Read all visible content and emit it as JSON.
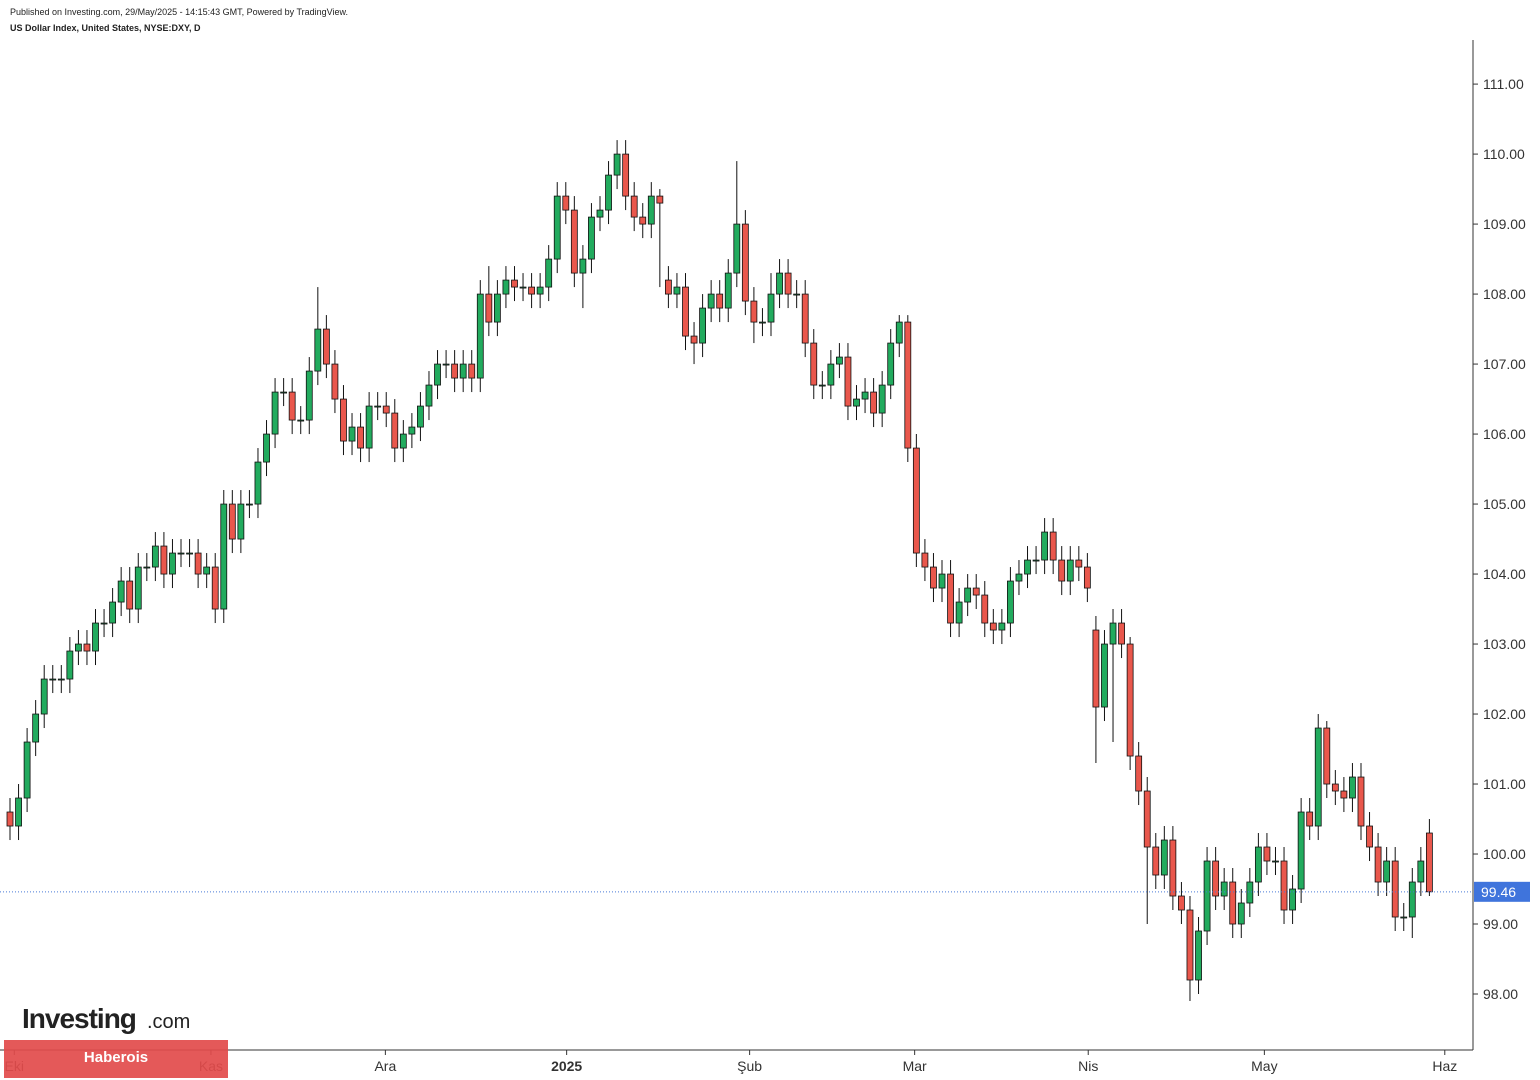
{
  "chart_data": {
    "type": "candlestick",
    "source_note": "Published on Investing.com, 29/May/2025 - 14:15:43 GMT, Powered by TradingView.",
    "title": "US Dollar Index, United States, NYSE:DXY, D",
    "up_color": "#22ab5e",
    "down_color": "#e9574c",
    "ylim": [
      97.2,
      111.63
    ],
    "yticks": [
      {
        "value": 98,
        "label": "98.00"
      },
      {
        "value": 99,
        "label": "99.00"
      },
      {
        "value": 100,
        "label": "100.00"
      },
      {
        "value": 101,
        "label": "101.00"
      },
      {
        "value": 102,
        "label": "102.00"
      },
      {
        "value": 103,
        "label": "103.00"
      },
      {
        "value": 104,
        "label": "104.00"
      },
      {
        "value": 105,
        "label": "105.00"
      },
      {
        "value": 106,
        "label": "106.00"
      },
      {
        "value": 107,
        "label": "107.00"
      },
      {
        "value": 108,
        "label": "108.00"
      },
      {
        "value": 109,
        "label": "109.00"
      },
      {
        "value": 110,
        "label": "110.00"
      },
      {
        "value": 111,
        "label": "111.00"
      }
    ],
    "xlim": [
      -1.17,
      171.1
    ],
    "xticks": [
      {
        "value": 0.5,
        "label": "Eki"
      },
      {
        "value": 23.5,
        "label": "Kas"
      },
      {
        "value": 43.9,
        "label": "Ara"
      },
      {
        "value": 65.1,
        "label": "2025"
      },
      {
        "value": 86.5,
        "label": "Şub"
      },
      {
        "value": 105.8,
        "label": "Mar"
      },
      {
        "value": 126.1,
        "label": "Nis"
      },
      {
        "value": 146.7,
        "label": "May"
      },
      {
        "value": 167.8,
        "label": "Haz"
      }
    ],
    "open": [
      100.6,
      100.4,
      100.8,
      101.6,
      102.0,
      102.5,
      102.5,
      102.5,
      102.9,
      103.0,
      102.9,
      103.3,
      103.3,
      103.6,
      103.9,
      103.5,
      104.1,
      104.1,
      104.4,
      104.0,
      104.3,
      104.3,
      104.3,
      104.0,
      104.1,
      103.5,
      105.0,
      104.5,
      105.0,
      105.0,
      105.6,
      106.0,
      106.6,
      106.6,
      106.2,
      106.2,
      106.9,
      107.5,
      107.0,
      106.5,
      105.9,
      106.1,
      105.8,
      106.4,
      106.4,
      106.3,
      105.8,
      106.0,
      106.1,
      106.4,
      106.7,
      107.0,
      107.0,
      106.8,
      107.0,
      106.8,
      108.0,
      107.6,
      108.0,
      108.2,
      108.1,
      108.1,
      108.0,
      108.1,
      108.5,
      109.4,
      109.2,
      108.3,
      108.5,
      109.1,
      109.2,
      109.7,
      110.0,
      109.4,
      109.1,
      109.0,
      109.4,
      108.2,
      108.0,
      108.1,
      107.4,
      107.3,
      107.8,
      108.0,
      107.8,
      108.3,
      109.0,
      107.9,
      107.6,
      107.6,
      108.0,
      108.3,
      108.0,
      108.0,
      107.3,
      106.7,
      106.7,
      107.0,
      107.1,
      106.4,
      106.5,
      106.6,
      106.3,
      106.7,
      107.3,
      107.6,
      105.8,
      104.3,
      104.1,
      103.8,
      104.0,
      103.3,
      103.6,
      103.8,
      103.7,
      103.3,
      103.2,
      103.3,
      103.9,
      104.0,
      104.2,
      104.2,
      104.6,
      104.2,
      103.9,
      104.2,
      104.1,
      103.2,
      102.1,
      103.0,
      103.3,
      103.0,
      101.4,
      100.9,
      100.1,
      99.7,
      100.2,
      99.4,
      99.2,
      98.2,
      98.9,
      99.9,
      99.4,
      99.6,
      99.0,
      99.3,
      99.6,
      100.1,
      99.9,
      99.9,
      99.2,
      99.5,
      100.6,
      100.4,
      101.8,
      101.0,
      100.9,
      100.8,
      101.1,
      100.4,
      100.1,
      99.6,
      99.9,
      99.1,
      99.1,
      99.6,
      100.3
    ],
    "high": [
      100.8,
      101.0,
      101.8,
      102.2,
      102.7,
      102.7,
      102.7,
      103.1,
      103.2,
      103.2,
      103.5,
      103.5,
      103.8,
      104.1,
      104.1,
      104.3,
      104.3,
      104.6,
      104.6,
      104.5,
      104.5,
      104.5,
      104.5,
      104.3,
      104.3,
      105.2,
      105.2,
      105.2,
      105.2,
      105.8,
      106.2,
      106.8,
      106.8,
      106.8,
      106.4,
      107.1,
      108.1,
      107.7,
      107.2,
      106.7,
      106.3,
      106.3,
      106.6,
      106.6,
      106.6,
      106.5,
      106.2,
      106.3,
      106.6,
      106.9,
      107.2,
      107.2,
      107.2,
      107.2,
      107.2,
      108.2,
      108.4,
      108.2,
      108.4,
      108.4,
      108.3,
      108.3,
      108.3,
      108.7,
      109.6,
      109.6,
      109.4,
      108.7,
      109.3,
      109.4,
      109.9,
      110.2,
      110.2,
      109.6,
      109.3,
      109.6,
      109.5,
      108.4,
      108.3,
      108.3,
      107.6,
      108.0,
      108.2,
      108.2,
      108.5,
      109.9,
      109.2,
      108.1,
      107.8,
      108.3,
      108.5,
      108.5,
      108.2,
      108.2,
      107.5,
      106.9,
      107.2,
      107.3,
      107.3,
      106.7,
      106.8,
      106.8,
      106.9,
      107.5,
      107.7,
      107.7,
      106.0,
      104.5,
      104.3,
      104.2,
      104.2,
      103.8,
      104.0,
      104.0,
      103.9,
      103.5,
      103.5,
      104.1,
      104.2,
      104.4,
      104.4,
      104.8,
      104.8,
      104.4,
      104.4,
      104.4,
      104.3,
      103.4,
      103.2,
      103.5,
      103.5,
      103.1,
      101.6,
      101.1,
      100.3,
      100.4,
      100.4,
      99.6,
      99.4,
      99.1,
      100.1,
      100.1,
      99.8,
      99.8,
      99.5,
      99.8,
      100.3,
      100.3,
      100.1,
      100.1,
      99.7,
      100.8,
      100.8,
      102.0,
      101.9,
      101.2,
      101.1,
      101.3,
      101.3,
      100.6,
      100.3,
      100.1,
      100.1,
      99.3,
      99.8,
      100.1,
      100.5
    ],
    "low": [
      100.2,
      100.2,
      100.6,
      101.4,
      101.8,
      102.3,
      102.3,
      102.3,
      102.7,
      102.7,
      102.7,
      103.1,
      103.1,
      103.4,
      103.3,
      103.3,
      103.9,
      103.9,
      103.8,
      103.8,
      104.1,
      104.1,
      103.8,
      103.8,
      103.3,
      103.3,
      104.3,
      104.3,
      104.8,
      104.8,
      105.4,
      105.8,
      106.4,
      106.0,
      106.0,
      106.0,
      106.7,
      106.8,
      106.3,
      105.7,
      105.7,
      105.6,
      105.6,
      106.2,
      106.1,
      105.6,
      105.6,
      105.8,
      105.9,
      106.2,
      106.5,
      106.8,
      106.6,
      106.6,
      106.6,
      106.6,
      107.4,
      107.4,
      107.8,
      107.9,
      107.9,
      107.8,
      107.8,
      107.9,
      108.3,
      109.0,
      108.1,
      107.8,
      108.3,
      108.9,
      109.0,
      109.5,
      109.2,
      108.9,
      108.8,
      108.8,
      108.1,
      107.8,
      107.8,
      107.2,
      107.0,
      107.1,
      107.6,
      107.6,
      107.6,
      108.1,
      107.7,
      107.3,
      107.4,
      107.4,
      107.8,
      107.8,
      107.8,
      107.1,
      106.5,
      106.5,
      106.5,
      106.8,
      106.2,
      106.2,
      106.3,
      106.1,
      106.1,
      106.5,
      107.1,
      105.6,
      104.1,
      103.9,
      103.6,
      103.6,
      103.1,
      103.1,
      103.4,
      103.5,
      103.1,
      103.0,
      103.0,
      103.1,
      103.7,
      103.8,
      104.0,
      104.0,
      104.0,
      103.7,
      103.7,
      103.9,
      103.6,
      101.3,
      101.9,
      101.6,
      102.8,
      101.2,
      100.7,
      99.0,
      99.5,
      99.5,
      99.2,
      99.0,
      97.9,
      98.0,
      98.7,
      99.2,
      99.2,
      98.8,
      98.8,
      99.1,
      99.4,
      99.7,
      99.7,
      99.0,
      99.0,
      99.3,
      100.2,
      100.2,
      100.8,
      100.7,
      100.6,
      100.6,
      100.2,
      99.9,
      99.4,
      99.4,
      98.9,
      98.9,
      98.8,
      99.4,
      99.4
    ],
    "close": [
      100.4,
      100.8,
      101.6,
      102.0,
      102.5,
      102.5,
      102.5,
      102.9,
      103.0,
      102.9,
      103.3,
      103.3,
      103.6,
      103.9,
      103.5,
      104.1,
      104.1,
      104.4,
      104.0,
      104.3,
      104.3,
      104.3,
      104.0,
      104.1,
      103.5,
      105.0,
      104.5,
      105.0,
      105.0,
      105.6,
      106.0,
      106.6,
      106.6,
      106.2,
      106.2,
      106.9,
      107.5,
      107.0,
      106.5,
      105.9,
      106.1,
      105.8,
      106.4,
      106.4,
      106.3,
      105.8,
      106.0,
      106.1,
      106.4,
      106.7,
      107.0,
      107.0,
      106.8,
      107.0,
      106.8,
      108.0,
      107.6,
      108.0,
      108.2,
      108.1,
      108.1,
      108.0,
      108.1,
      108.5,
      109.4,
      109.2,
      108.3,
      108.5,
      109.1,
      109.2,
      109.7,
      110.0,
      109.4,
      109.1,
      109.0,
      109.4,
      109.3,
      108.0,
      108.1,
      107.4,
      107.3,
      107.8,
      108.0,
      107.8,
      108.3,
      109.0,
      107.9,
      107.6,
      107.6,
      108.0,
      108.3,
      108.0,
      108.0,
      107.3,
      106.7,
      106.7,
      107.0,
      107.1,
      106.4,
      106.5,
      106.6,
      106.3,
      106.7,
      107.3,
      107.6,
      105.8,
      104.3,
      104.1,
      103.8,
      104.0,
      103.3,
      103.6,
      103.8,
      103.7,
      103.3,
      103.2,
      103.3,
      103.9,
      104.0,
      104.2,
      104.2,
      104.6,
      104.2,
      103.9,
      104.2,
      104.1,
      103.8,
      102.1,
      103.0,
      103.3,
      103.0,
      101.4,
      100.9,
      100.1,
      99.7,
      100.2,
      99.4,
      99.2,
      98.2,
      98.9,
      99.9,
      99.4,
      99.6,
      99.0,
      99.3,
      99.6,
      100.1,
      99.9,
      99.9,
      99.2,
      99.5,
      100.6,
      100.4,
      101.8,
      101.0,
      100.9,
      100.8,
      101.1,
      100.4,
      100.1,
      99.6,
      99.9,
      99.1,
      99.1,
      99.6,
      99.9,
      99.46
    ]
  },
  "logo": {
    "main": "Investing",
    "suffix": ".com"
  },
  "badge": "Haberois"
}
